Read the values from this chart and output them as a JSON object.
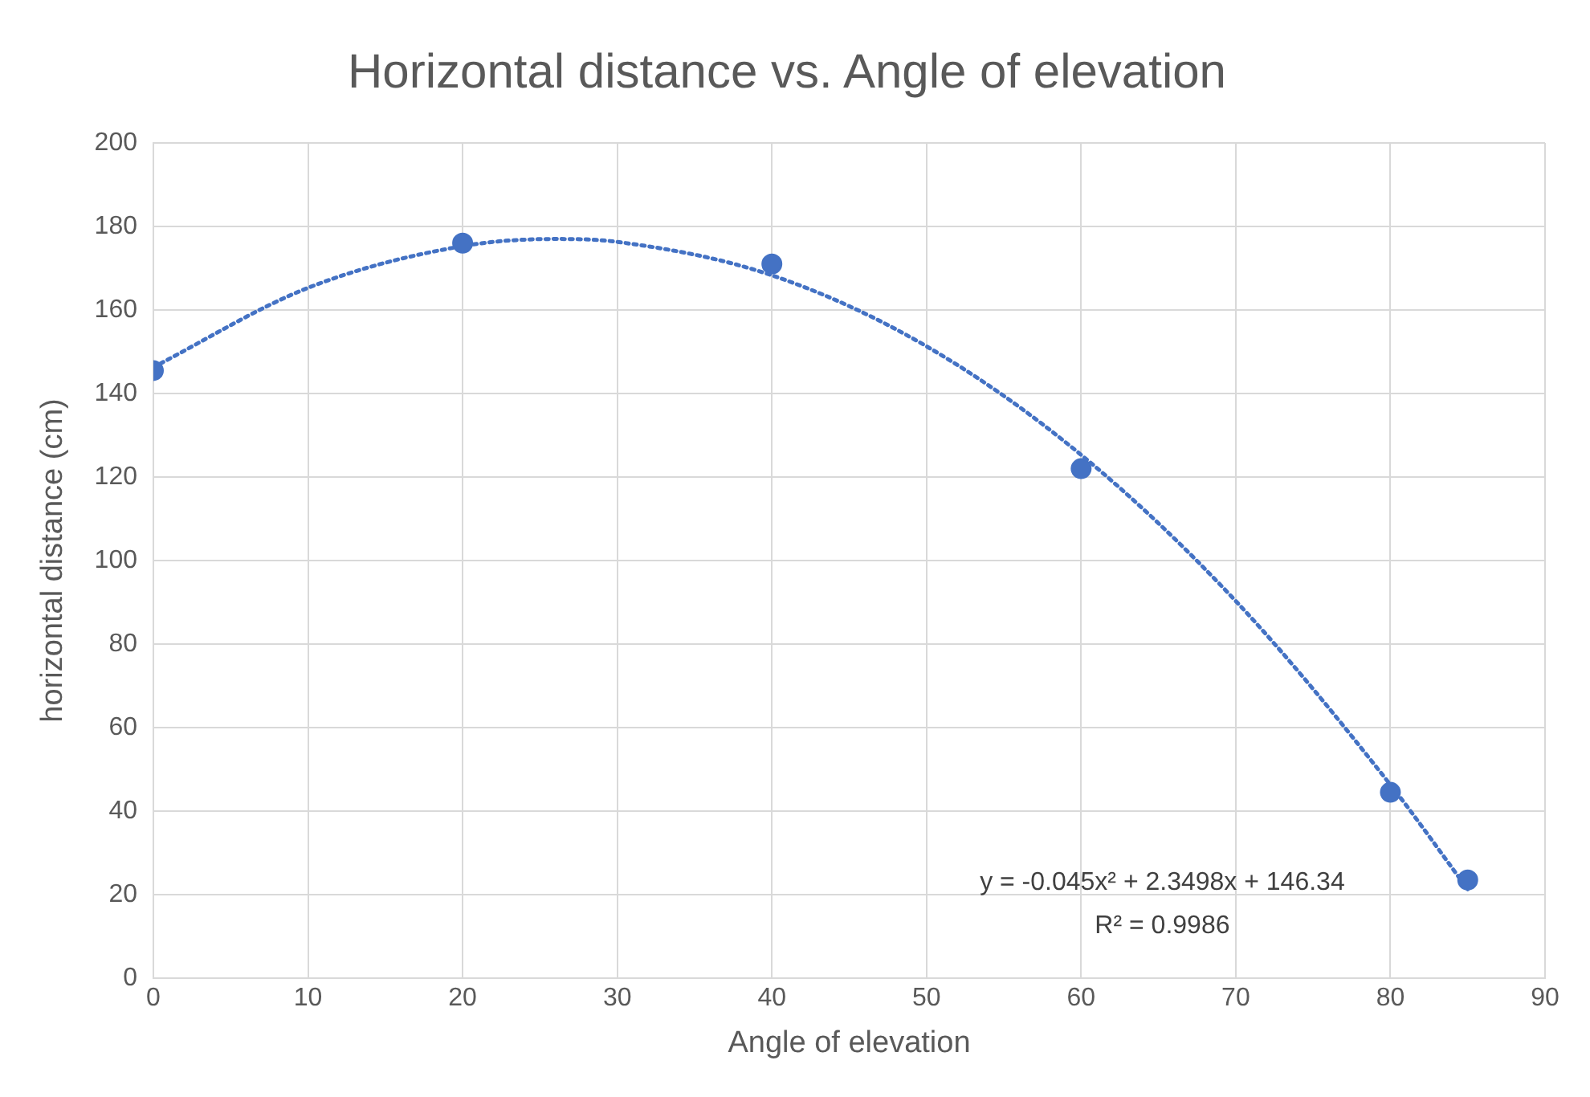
{
  "chart_data": {
    "type": "scatter",
    "title": "Horizontal distance vs. Angle of elevation",
    "xlabel": "Angle of elevation",
    "ylabel": "horizontal distance (cm)",
    "series": [
      {
        "type": "scatter",
        "color": "#4472c4",
        "marker": "circle",
        "x": [
          0,
          20,
          40,
          60,
          80,
          85
        ],
        "values": [
          145.5,
          176,
          171,
          122,
          44.5,
          23.5
        ]
      },
      {
        "type": "line",
        "color": "#4472c4",
        "marker": "none",
        "line_style": "dotted",
        "x": [
          0,
          10,
          20,
          26,
          30,
          40,
          50,
          60,
          70,
          80,
          85
        ],
        "values": [
          146.3,
          165.3,
          175.3,
          177,
          176.3,
          168.3,
          151.3,
          125.3,
          90.3,
          46.3,
          21.3
        ]
      }
    ],
    "xlim": [
      0,
      90
    ],
    "xticks": [
      0,
      10,
      20,
      30,
      40,
      50,
      60,
      70,
      80,
      90
    ],
    "ylim": [
      0,
      200
    ],
    "yticks": [
      0,
      20,
      40,
      60,
      80,
      100,
      120,
      140,
      160,
      180,
      200
    ],
    "grid": true,
    "legend": false,
    "annotations": [
      "y = -0.045x² + 2.3498x + 146.34",
      "R² = 0.9986"
    ]
  }
}
